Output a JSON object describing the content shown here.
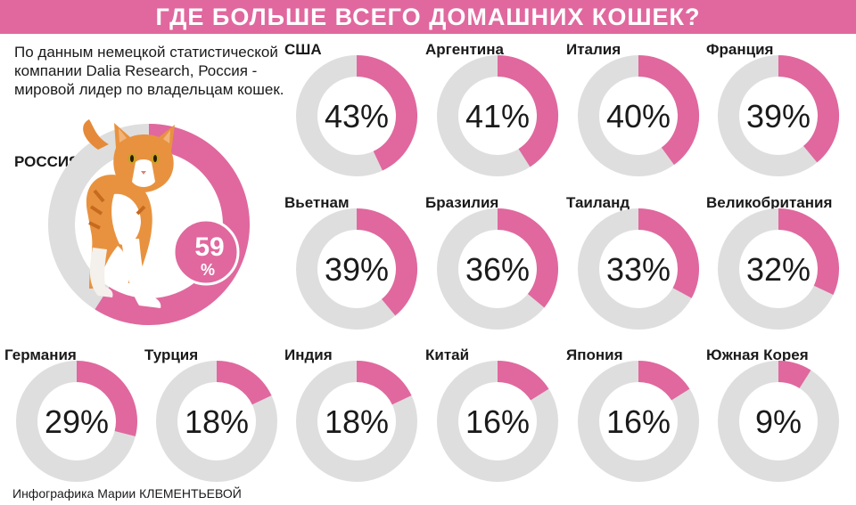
{
  "header": {
    "title": "ГДЕ БОЛЬШЕ ВСЕГО ДОМАШНИХ КОШЕК?"
  },
  "intro": {
    "text": "По данным немецкой статистической компании Dalia Research, Россия - мировой лидер по владельцам кошек."
  },
  "credit": {
    "text": "Инфографика Марии КЛЕМЕНТЬЕВОЙ"
  },
  "colors": {
    "accent": "#e0689e",
    "track": "#dedede"
  },
  "icons": {
    "cat": "ginger-cat-illustration"
  },
  "chart_data": {
    "type": "donut",
    "title": "ГДЕ БОЛЬШЕ ВСЕГО ДОМАШНИХ КОШЕК?",
    "unit": "%",
    "highlight": {
      "country": "РОССИЯ",
      "value": 59,
      "value_text": "59",
      "unit_text": "%"
    },
    "categories": [
      "США",
      "Аргентина",
      "Италия",
      "Франция",
      "Вьетнам",
      "Бразилия",
      "Таиланд",
      "Великобритания",
      "Германия",
      "Турция",
      "Индия",
      "Китай",
      "Япония",
      "Южная Корея"
    ],
    "values": [
      43,
      41,
      40,
      39,
      39,
      36,
      33,
      32,
      29,
      18,
      18,
      16,
      16,
      9
    ],
    "value_labels": [
      "43%",
      "41%",
      "40%",
      "39%",
      "39%",
      "36%",
      "33%",
      "32%",
      "29%",
      "18%",
      "18%",
      "16%",
      "16%",
      "9%"
    ]
  }
}
